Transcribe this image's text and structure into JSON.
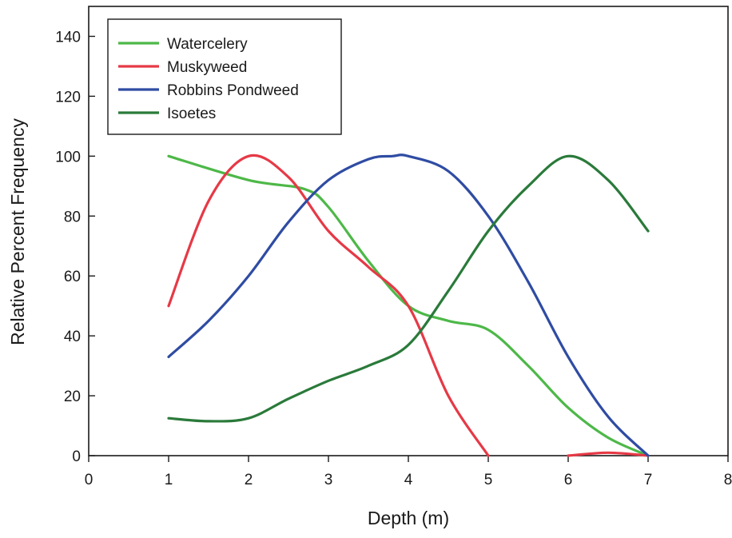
{
  "chart_data": {
    "type": "line",
    "title": "",
    "xlabel": "Depth (m)",
    "ylabel": "Relative Percent Frequency",
    "xlim": [
      0,
      8
    ],
    "ylim": [
      0,
      150
    ],
    "xticks": [
      "0",
      "1",
      "2",
      "3",
      "4",
      "5",
      "6",
      "7",
      "8"
    ],
    "yticks": [
      "0",
      "20",
      "40",
      "60",
      "80",
      "100",
      "120",
      "140"
    ],
    "grid": false,
    "legend_position": "top-left",
    "series": [
      {
        "name": "Watercelery",
        "color": "#4db848",
        "x": [
          1,
          2,
          2.7,
          3,
          3.5,
          4,
          4.5,
          5,
          5.5,
          6,
          6.5,
          7
        ],
        "y": [
          100,
          92,
          89,
          83,
          65,
          50,
          45,
          42,
          30,
          16,
          6,
          0
        ]
      },
      {
        "name": "Muskyweed",
        "color": "#e63946",
        "segments": [
          {
            "x": [
              1,
              1.5,
              2,
              2.5,
              3,
              3.5,
              4,
              4.5,
              5
            ],
            "y": [
              50,
              85,
              100,
              93,
              75,
              63,
              50,
              20,
              0
            ]
          },
          {
            "x": [
              6,
              6.5,
              7
            ],
            "y": [
              0,
              1,
              0
            ]
          }
        ]
      },
      {
        "name": "Robbins Pondweed",
        "color": "#2f4ca3",
        "x": [
          1,
          1.5,
          2,
          2.5,
          3,
          3.5,
          3.8,
          4,
          4.5,
          5,
          5.5,
          6,
          6.5,
          7
        ],
        "y": [
          33,
          45,
          60,
          78,
          92,
          99,
          100,
          100,
          95,
          80,
          58,
          33,
          13,
          0
        ]
      },
      {
        "name": "Isoetes",
        "color": "#2a7a3a",
        "x": [
          1,
          1.5,
          2,
          2.5,
          3,
          3.5,
          4,
          4.5,
          5,
          5.5,
          6,
          6.5,
          7
        ],
        "y": [
          12.5,
          11.5,
          12.5,
          19,
          25,
          30,
          37,
          55,
          75,
          90,
          100,
          92,
          75
        ]
      }
    ]
  }
}
